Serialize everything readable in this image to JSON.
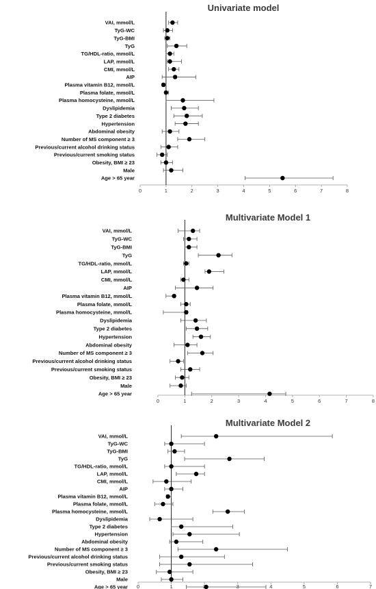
{
  "chart_data": [
    {
      "type": "forest",
      "title": "Univariate model",
      "xlim": [
        0,
        8
      ],
      "xticks": [
        "0",
        "1",
        "2",
        "3",
        "4",
        "5",
        "6",
        "7",
        "8"
      ],
      "reference_line": 1,
      "rows": [
        {
          "label": "VAI, mmol/L",
          "or": 1.25,
          "lo": 1.1,
          "hi": 1.45
        },
        {
          "label": "TyG-WC",
          "or": 1.05,
          "lo": 0.9,
          "hi": 1.25
        },
        {
          "label": "TyG-BMI",
          "or": 1.05,
          "lo": 0.95,
          "hi": 1.15
        },
        {
          "label": "TyG",
          "or": 1.4,
          "lo": 1.05,
          "hi": 1.8
        },
        {
          "label": "TG/HDL-ratio, mmol/L",
          "or": 1.15,
          "lo": 1.0,
          "hi": 1.3
        },
        {
          "label": "LAP, mmol/L",
          "or": 1.15,
          "lo": 1.05,
          "hi": 1.6
        },
        {
          "label": "CMI, mmol/L",
          "or": 1.3,
          "lo": 1.1,
          "hi": 1.5
        },
        {
          "label": "AIP",
          "or": 1.35,
          "lo": 0.85,
          "hi": 2.15
        },
        {
          "label": "Plasma vitamin B12, mmol/L",
          "or": 0.9,
          "lo": 0.85,
          "hi": 0.95
        },
        {
          "label": "Plasma folate, mmol/L",
          "or": 1.0,
          "lo": 0.95,
          "hi": 1.1
        },
        {
          "label": "Plasma homocysteine, mmol/L",
          "or": 1.65,
          "lo": 1.0,
          "hi": 2.85
        },
        {
          "label": "Dyslipidemia",
          "or": 1.7,
          "lo": 1.2,
          "hi": 2.25
        },
        {
          "label": "Type 2 diabetes",
          "or": 1.8,
          "lo": 1.3,
          "hi": 2.4
        },
        {
          "label": "Hypertension",
          "or": 1.75,
          "lo": 1.35,
          "hi": 2.25
        },
        {
          "label": "Abdominal obesity",
          "or": 1.15,
          "lo": 0.85,
          "hi": 1.5
        },
        {
          "label": "Number of MS component ≥ 3",
          "or": 1.9,
          "lo": 1.45,
          "hi": 2.5
        },
        {
          "label": "Previous/current alcohol drinking status",
          "or": 1.1,
          "lo": 0.8,
          "hi": 1.45
        },
        {
          "label": "Previous/current smoking status",
          "or": 0.85,
          "lo": 0.65,
          "hi": 1.05
        },
        {
          "label": "Obesity, BMI ≥ 23",
          "or": 1.0,
          "lo": 0.8,
          "hi": 1.25
        },
        {
          "label": "Male",
          "or": 1.2,
          "lo": 0.9,
          "hi": 1.65
        },
        {
          "label": "Age > 65 year",
          "or": 5.5,
          "lo": 4.05,
          "hi": 7.45
        }
      ]
    },
    {
      "type": "forest",
      "title": "Multivariate Model 1",
      "xlim": [
        0,
        8
      ],
      "xticks": [
        "0",
        "1",
        "2",
        "3",
        "4",
        "5",
        "6",
        "7",
        "8"
      ],
      "reference_line": 1,
      "rows": [
        {
          "label": "VAI, mmol/L",
          "or": 1.3,
          "lo": 0.75,
          "hi": 1.55
        },
        {
          "label": "TyG-WC",
          "or": 1.15,
          "lo": 0.95,
          "hi": 1.45
        },
        {
          "label": "TyG-BMI",
          "or": 1.15,
          "lo": 1.0,
          "hi": 1.45
        },
        {
          "label": "TyG",
          "or": 2.25,
          "lo": 1.5,
          "hi": 2.75
        },
        {
          "label": "TG/HDL-ratio, mmol/L",
          "or": 1.05,
          "lo": 0.95,
          "hi": 1.15
        },
        {
          "label": "LAP, mmol/L",
          "or": 1.9,
          "lo": 1.75,
          "hi": 2.45
        },
        {
          "label": "CMI, mmol/L",
          "or": 0.95,
          "lo": 0.85,
          "hi": 1.15
        },
        {
          "label": "AIP",
          "or": 1.45,
          "lo": 0.65,
          "hi": 2.05
        },
        {
          "label": "Plasma vitamin B12, mmol/L",
          "or": 0.6,
          "lo": 0.3,
          "hi": 0.65
        },
        {
          "label": "Plasma folate, mmol/L",
          "or": 1.05,
          "lo": 0.85,
          "hi": 1.2
        },
        {
          "label": "Plasma homocysteine, mmol/L",
          "or": 1.05,
          "lo": 0.2,
          "hi": 1.1
        },
        {
          "label": "Dyslipidemia",
          "or": 1.4,
          "lo": 0.85,
          "hi": 1.8
        },
        {
          "label": "Type 2 diabetes",
          "or": 1.45,
          "lo": 1.05,
          "hi": 1.85
        },
        {
          "label": "Hypertension",
          "or": 1.6,
          "lo": 1.3,
          "hi": 1.95
        },
        {
          "label": "Abdominal obesity",
          "or": 1.1,
          "lo": 0.6,
          "hi": 1.45
        },
        {
          "label": "Number of MS component ≥ 3",
          "or": 1.65,
          "lo": 1.1,
          "hi": 2.05
        },
        {
          "label": "Previous/current alcohol drinking status",
          "or": 0.75,
          "lo": 0.45,
          "hi": 0.95
        },
        {
          "label": "Previous/current smoking status",
          "or": 1.2,
          "lo": 0.85,
          "hi": 1.55
        },
        {
          "label": "Obesity, BMI ≥ 23",
          "or": 0.9,
          "lo": 0.65,
          "hi": 1.15
        },
        {
          "label": "Male",
          "or": 0.85,
          "lo": 0.45,
          "hi": 1.05
        },
        {
          "label": "Age > 65 year",
          "or": 4.15,
          "lo": 1.25,
          "hi": 4.75
        }
      ]
    },
    {
      "type": "forest",
      "title": "Multivariate Model 2",
      "xlim": [
        0,
        7
      ],
      "xticks": [
        "0",
        "1",
        "2",
        "3",
        "4",
        "5",
        "6",
        "7"
      ],
      "reference_line": 1,
      "rows": [
        {
          "label": "VAI, mmol/L",
          "or": 2.35,
          "lo": 1.3,
          "hi": 5.85
        },
        {
          "label": "TyG-WC",
          "or": 1.0,
          "lo": 0.8,
          "hi": 2.0
        },
        {
          "label": "TyG-BMI",
          "or": 1.1,
          "lo": 0.9,
          "hi": 1.4
        },
        {
          "label": "TyG",
          "or": 2.75,
          "lo": 1.4,
          "hi": 3.8
        },
        {
          "label": "TG/HDL-ratio, mmol/L",
          "or": 1.0,
          "lo": 0.8,
          "hi": 2.0
        },
        {
          "label": "LAP, mmol/L",
          "or": 1.75,
          "lo": 1.15,
          "hi": 2.0
        },
        {
          "label": "CMI, mmol/L",
          "or": 0.85,
          "lo": 0.45,
          "hi": 1.6
        },
        {
          "label": "AIP",
          "or": 1.0,
          "lo": 0.8,
          "hi": 1.35
        },
        {
          "label": "Plasma vitamin B12, mmol/L",
          "or": 0.9,
          "lo": 0.85,
          "hi": 1.0
        },
        {
          "label": "Plasma folate, mmol/L",
          "or": 0.75,
          "lo": 0.5,
          "hi": 1.05
        },
        {
          "label": "Plasma homocysteine, mmol/L",
          "or": 2.7,
          "lo": 2.25,
          "hi": 3.2
        },
        {
          "label": "Dyslipidemia",
          "or": 0.65,
          "lo": 0.35,
          "hi": 1.65
        },
        {
          "label": "Type 2 diabetes",
          "or": 1.3,
          "lo": 1.0,
          "hi": 2.85
        },
        {
          "label": "Hypertension",
          "or": 1.55,
          "lo": 1.05,
          "hi": 3.05
        },
        {
          "label": "Abdominal obesity",
          "or": 1.15,
          "lo": 0.95,
          "hi": 1.95
        },
        {
          "label": "Number of MS component ≥ 3",
          "or": 2.35,
          "lo": 1.2,
          "hi": 4.5
        },
        {
          "label": "Previous/current alcohol drinking status",
          "or": 1.3,
          "lo": 0.65,
          "hi": 2.6
        },
        {
          "label": "Previous/current smoking status",
          "or": 1.55,
          "lo": 0.65,
          "hi": 3.45
        },
        {
          "label": "Obesity, BMI ≥ 23",
          "or": 0.95,
          "lo": 0.55,
          "hi": 1.65
        },
        {
          "label": "Male",
          "or": 1.0,
          "lo": 0.7,
          "hi": 1.35
        },
        {
          "label": "Age > 65 year",
          "or": 2.05,
          "lo": 1.45,
          "hi": 3.85
        }
      ]
    }
  ]
}
